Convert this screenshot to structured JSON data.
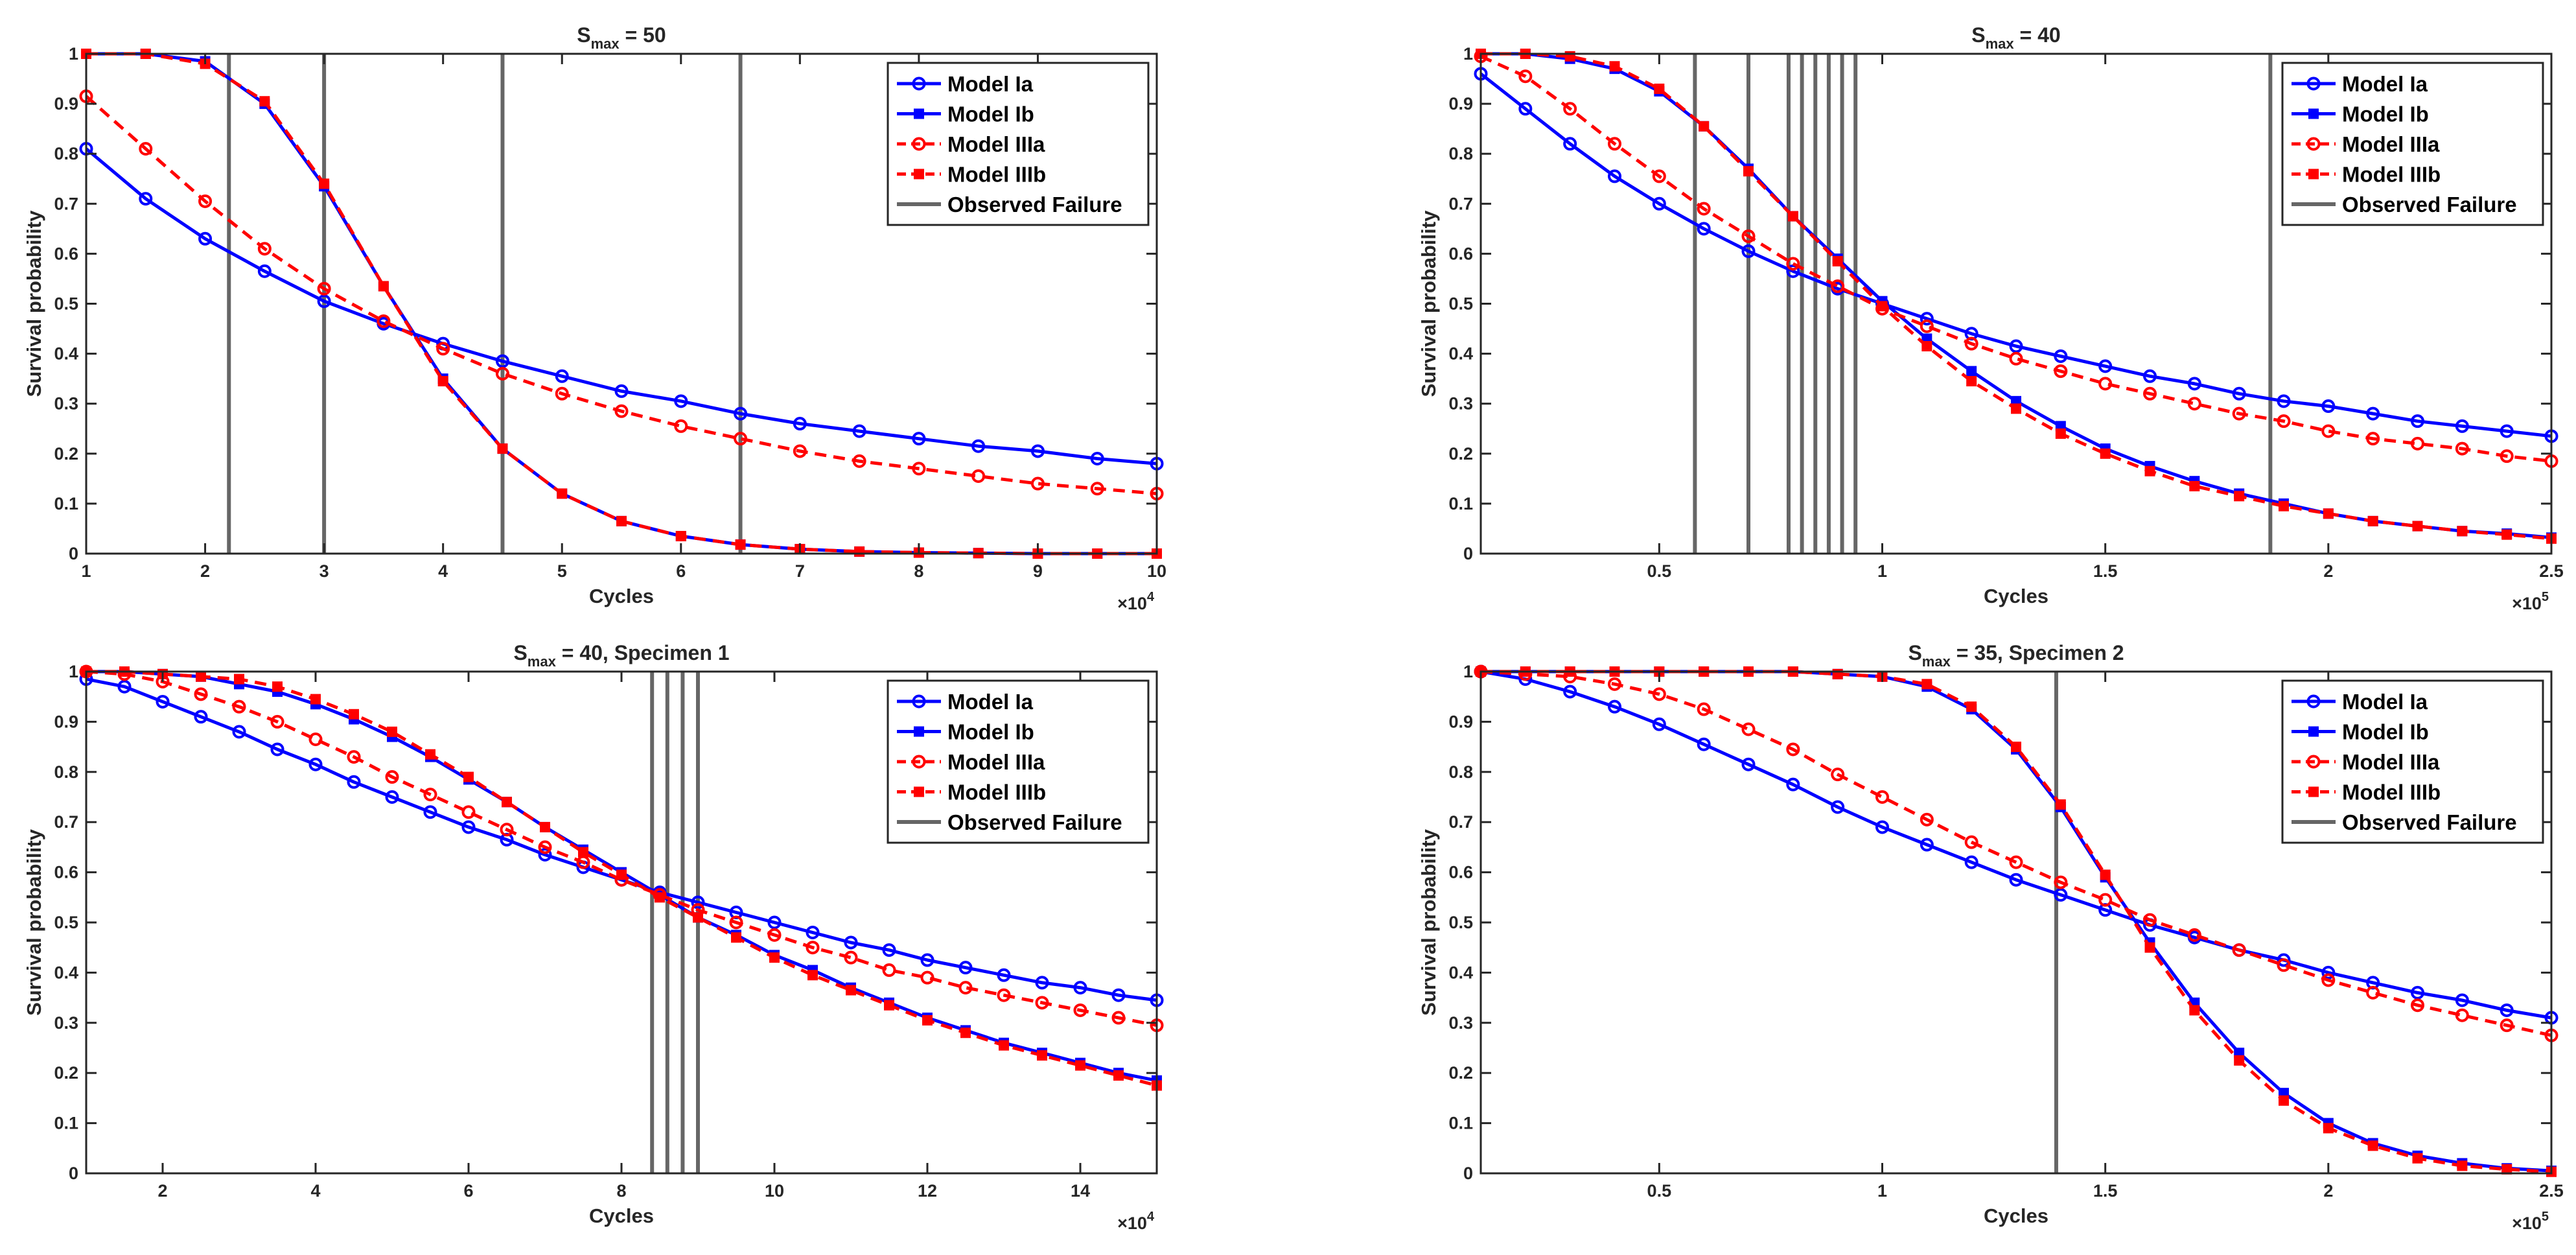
{
  "colors": {
    "blue": "#0000ff",
    "red": "#ff0000",
    "failure": "#666666",
    "axis": "#262626"
  },
  "chart_data": [
    {
      "type": "line",
      "title_main": "S",
      "title_sub": "max",
      "title_rest": " = 50",
      "xlabel": "Cycles",
      "ylabel": "Survival probability",
      "xlim": [
        1,
        10
      ],
      "ylim": [
        0,
        1
      ],
      "xticks": [
        1,
        2,
        3,
        4,
        5,
        6,
        7,
        8,
        9,
        10
      ],
      "xtick_labels": [
        "1",
        "2",
        "3",
        "4",
        "5",
        "6",
        "7",
        "8",
        "9",
        "10"
      ],
      "yticks": [
        0,
        0.1,
        0.2,
        0.3,
        0.4,
        0.5,
        0.6,
        0.7,
        0.8,
        0.9,
        1
      ],
      "ytick_labels": [
        "0",
        "0.1",
        "0.2",
        "0.3",
        "0.4",
        "0.5",
        "0.6",
        "0.7",
        "0.8",
        "0.9",
        "1"
      ],
      "x_multiplier": {
        "base": "×10",
        "exp": "4"
      },
      "x": [
        1,
        1.5,
        2,
        2.5,
        3,
        3.5,
        4,
        4.5,
        5,
        5.5,
        6,
        6.5,
        7,
        7.5,
        8,
        8.5,
        9,
        9.5,
        10
      ],
      "series": [
        {
          "name": "Model Ia",
          "style": "Ia",
          "values": [
            0.81,
            0.71,
            0.63,
            0.565,
            0.505,
            0.46,
            0.42,
            0.385,
            0.355,
            0.325,
            0.305,
            0.28,
            0.26,
            0.245,
            0.23,
            0.215,
            0.205,
            0.19,
            0.18
          ]
        },
        {
          "name": "Model Ib",
          "style": "Ib",
          "values": [
            1.0,
            1.0,
            0.985,
            0.9,
            0.735,
            0.535,
            0.35,
            0.21,
            0.12,
            0.065,
            0.035,
            0.018,
            0.009,
            0.004,
            0.002,
            0.001,
            0,
            0,
            0
          ]
        },
        {
          "name": "Model IIIa",
          "style": "IIIa",
          "values": [
            0.915,
            0.81,
            0.705,
            0.61,
            0.53,
            0.465,
            0.41,
            0.36,
            0.32,
            0.285,
            0.255,
            0.23,
            0.205,
            0.185,
            0.17,
            0.155,
            0.14,
            0.13,
            0.12
          ]
        },
        {
          "name": "Model IIIb",
          "style": "IIIb",
          "values": [
            1.0,
            1.0,
            0.98,
            0.905,
            0.74,
            0.535,
            0.345,
            0.21,
            0.12,
            0.065,
            0.035,
            0.018,
            0.009,
            0.004,
            0.002,
            0.001,
            0,
            0,
            0
          ]
        }
      ],
      "failures": [
        2.2,
        3.0,
        4.5,
        6.5
      ],
      "legend": [
        "Model Ia",
        "Model Ib",
        "Model IIIa",
        "Model IIIb",
        "Observed Failure"
      ]
    },
    {
      "type": "line",
      "title_main": "S",
      "title_sub": "max",
      "title_rest": " = 40",
      "xlabel": "Cycles",
      "ylabel": "Survival probability",
      "xlim": [
        0.1,
        2.5
      ],
      "ylim": [
        0,
        1
      ],
      "xticks": [
        0.5,
        1,
        1.5,
        2,
        2.5
      ],
      "xtick_labels": [
        "0.5",
        "1",
        "1.5",
        "2",
        "2.5"
      ],
      "yticks": [
        0,
        0.1,
        0.2,
        0.3,
        0.4,
        0.5,
        0.6,
        0.7,
        0.8,
        0.9,
        1
      ],
      "ytick_labels": [
        "0",
        "0.1",
        "0.2",
        "0.3",
        "0.4",
        "0.5",
        "0.6",
        "0.7",
        "0.8",
        "0.9",
        "1"
      ],
      "x_multiplier": {
        "base": "×10",
        "exp": "5"
      },
      "x": [
        0.1,
        0.2,
        0.3,
        0.4,
        0.5,
        0.6,
        0.7,
        0.8,
        0.9,
        1.0,
        1.1,
        1.2,
        1.3,
        1.4,
        1.5,
        1.6,
        1.7,
        1.8,
        1.9,
        2.0,
        2.1,
        2.2,
        2.3,
        2.4,
        2.5
      ],
      "series": [
        {
          "name": "Model Ia",
          "style": "Ia",
          "values": [
            0.96,
            0.89,
            0.82,
            0.755,
            0.7,
            0.65,
            0.605,
            0.565,
            0.53,
            0.5,
            0.47,
            0.44,
            0.415,
            0.395,
            0.375,
            0.355,
            0.34,
            0.32,
            0.305,
            0.295,
            0.28,
            0.265,
            0.255,
            0.245,
            0.235
          ]
        },
        {
          "name": "Model Ib",
          "style": "Ib",
          "values": [
            1.0,
            1.0,
            0.99,
            0.97,
            0.925,
            0.855,
            0.77,
            0.675,
            0.59,
            0.505,
            0.43,
            0.365,
            0.305,
            0.255,
            0.21,
            0.175,
            0.145,
            0.12,
            0.1,
            0.08,
            0.065,
            0.055,
            0.045,
            0.04,
            0.032
          ]
        },
        {
          "name": "Model IIIa",
          "style": "IIIa",
          "values": [
            0.995,
            0.955,
            0.89,
            0.82,
            0.755,
            0.69,
            0.635,
            0.58,
            0.535,
            0.49,
            0.455,
            0.42,
            0.39,
            0.365,
            0.34,
            0.32,
            0.3,
            0.28,
            0.265,
            0.245,
            0.23,
            0.22,
            0.21,
            0.195,
            0.185
          ]
        },
        {
          "name": "Model IIIb",
          "style": "IIIb",
          "values": [
            1.0,
            1.0,
            0.995,
            0.975,
            0.93,
            0.855,
            0.765,
            0.675,
            0.585,
            0.495,
            0.415,
            0.345,
            0.29,
            0.24,
            0.2,
            0.165,
            0.135,
            0.115,
            0.095,
            0.08,
            0.065,
            0.055,
            0.045,
            0.038,
            0.03
          ]
        }
      ],
      "failures": [
        0.58,
        0.7,
        0.79,
        0.82,
        0.85,
        0.88,
        0.91,
        0.94,
        1.87
      ],
      "legend": [
        "Model Ia",
        "Model Ib",
        "Model IIIa",
        "Model IIIb",
        "Observed Failure"
      ]
    },
    {
      "type": "line",
      "title_main": "S",
      "title_sub": "max",
      "title_rest": " = 40, Specimen 1",
      "xlabel": "Cycles",
      "ylabel": "Survival probability",
      "xlim": [
        1,
        15
      ],
      "ylim": [
        0,
        1
      ],
      "xticks": [
        2,
        4,
        6,
        8,
        10,
        12,
        14
      ],
      "xtick_labels": [
        "2",
        "4",
        "6",
        "8",
        "10",
        "12",
        "14"
      ],
      "yticks": [
        0,
        0.1,
        0.2,
        0.3,
        0.4,
        0.5,
        0.6,
        0.7,
        0.8,
        0.9,
        1
      ],
      "ytick_labels": [
        "0",
        "0.1",
        "0.2",
        "0.3",
        "0.4",
        "0.5",
        "0.6",
        "0.7",
        "0.8",
        "0.9",
        "1"
      ],
      "x_multiplier": {
        "base": "×10",
        "exp": "4"
      },
      "x": [
        1,
        1.5,
        2,
        2.5,
        3,
        3.5,
        4,
        4.5,
        5,
        5.5,
        6,
        6.5,
        7,
        7.5,
        8,
        8.5,
        9,
        9.5,
        10,
        10.5,
        11,
        11.5,
        12,
        12.5,
        13,
        13.5,
        14,
        14.5,
        15
      ],
      "series": [
        {
          "name": "Model Ia",
          "style": "Ia",
          "values": [
            0.985,
            0.97,
            0.94,
            0.91,
            0.88,
            0.845,
            0.815,
            0.78,
            0.75,
            0.72,
            0.69,
            0.665,
            0.635,
            0.61,
            0.585,
            0.56,
            0.54,
            0.52,
            0.5,
            0.48,
            0.46,
            0.445,
            0.425,
            0.41,
            0.395,
            0.38,
            0.37,
            0.355,
            0.345
          ]
        },
        {
          "name": "Model Ib",
          "style": "Ib",
          "values": [
            1.0,
            1.0,
            0.995,
            0.99,
            0.975,
            0.96,
            0.935,
            0.905,
            0.87,
            0.83,
            0.785,
            0.74,
            0.69,
            0.645,
            0.6,
            0.555,
            0.51,
            0.475,
            0.435,
            0.405,
            0.37,
            0.34,
            0.31,
            0.285,
            0.26,
            0.24,
            0.22,
            0.2,
            0.185
          ]
        },
        {
          "name": "Model IIIa",
          "style": "IIIa",
          "values": [
            1.0,
            0.995,
            0.98,
            0.955,
            0.93,
            0.9,
            0.865,
            0.83,
            0.79,
            0.755,
            0.72,
            0.685,
            0.65,
            0.62,
            0.585,
            0.555,
            0.525,
            0.5,
            0.475,
            0.45,
            0.43,
            0.405,
            0.39,
            0.37,
            0.355,
            0.34,
            0.325,
            0.31,
            0.295
          ]
        },
        {
          "name": "Model IIIb",
          "style": "IIIb",
          "values": [
            1.0,
            1.0,
            0.995,
            0.99,
            0.985,
            0.97,
            0.945,
            0.915,
            0.88,
            0.835,
            0.79,
            0.74,
            0.69,
            0.64,
            0.595,
            0.55,
            0.51,
            0.47,
            0.43,
            0.395,
            0.365,
            0.335,
            0.305,
            0.28,
            0.255,
            0.235,
            0.215,
            0.195,
            0.175
          ]
        }
      ],
      "failures": [
        8.4,
        8.6,
        8.8,
        9.0
      ],
      "legend": [
        "Model Ia",
        "Model Ib",
        "Model IIIa",
        "Model IIIb",
        "Observed Failure"
      ]
    },
    {
      "type": "line",
      "title_main": "S",
      "title_sub": "max",
      "title_rest": " = 35, Specimen 2",
      "xlabel": "Cycles",
      "ylabel": "Survival probability",
      "xlim": [
        0.1,
        2.5
      ],
      "ylim": [
        0,
        1
      ],
      "xticks": [
        0.5,
        1,
        1.5,
        2,
        2.5
      ],
      "xtick_labels": [
        "0.5",
        "1",
        "1.5",
        "2",
        "2.5"
      ],
      "yticks": [
        0,
        0.1,
        0.2,
        0.3,
        0.4,
        0.5,
        0.6,
        0.7,
        0.8,
        0.9,
        1
      ],
      "ytick_labels": [
        "0",
        "0.1",
        "0.2",
        "0.3",
        "0.4",
        "0.5",
        "0.6",
        "0.7",
        "0.8",
        "0.9",
        "1"
      ],
      "x_multiplier": {
        "base": "×10",
        "exp": "5"
      },
      "x": [
        0.1,
        0.2,
        0.3,
        0.4,
        0.5,
        0.6,
        0.7,
        0.8,
        0.9,
        1.0,
        1.1,
        1.2,
        1.3,
        1.4,
        1.5,
        1.6,
        1.7,
        1.8,
        1.9,
        2.0,
        2.1,
        2.2,
        2.3,
        2.4,
        2.5
      ],
      "series": [
        {
          "name": "Model Ia",
          "style": "Ia",
          "values": [
            1.0,
            0.985,
            0.96,
            0.93,
            0.895,
            0.855,
            0.815,
            0.775,
            0.73,
            0.69,
            0.655,
            0.62,
            0.585,
            0.555,
            0.525,
            0.495,
            0.47,
            0.445,
            0.425,
            0.4,
            0.38,
            0.36,
            0.345,
            0.325,
            0.31
          ]
        },
        {
          "name": "Model Ib",
          "style": "Ib",
          "values": [
            1.0,
            1.0,
            1.0,
            1.0,
            1.0,
            1.0,
            1.0,
            1.0,
            0.995,
            0.99,
            0.97,
            0.925,
            0.845,
            0.73,
            0.59,
            0.46,
            0.34,
            0.24,
            0.16,
            0.1,
            0.06,
            0.035,
            0.02,
            0.01,
            0.005
          ]
        },
        {
          "name": "Model IIIa",
          "style": "IIIa",
          "values": [
            1.0,
            0.995,
            0.99,
            0.975,
            0.955,
            0.925,
            0.885,
            0.845,
            0.795,
            0.75,
            0.705,
            0.66,
            0.62,
            0.58,
            0.545,
            0.505,
            0.475,
            0.445,
            0.415,
            0.385,
            0.36,
            0.335,
            0.315,
            0.295,
            0.275
          ]
        },
        {
          "name": "Model IIIb",
          "style": "IIIb",
          "values": [
            1.0,
            1.0,
            1.0,
            1.0,
            1.0,
            1.0,
            1.0,
            1.0,
            0.995,
            0.99,
            0.975,
            0.93,
            0.85,
            0.735,
            0.595,
            0.45,
            0.325,
            0.225,
            0.145,
            0.09,
            0.055,
            0.03,
            0.015,
            0.008,
            0.003
          ]
        }
      ],
      "failures": [
        1.39
      ],
      "legend": [
        "Model Ia",
        "Model Ib",
        "Model IIIa",
        "Model IIIb",
        "Observed Failure"
      ]
    }
  ]
}
